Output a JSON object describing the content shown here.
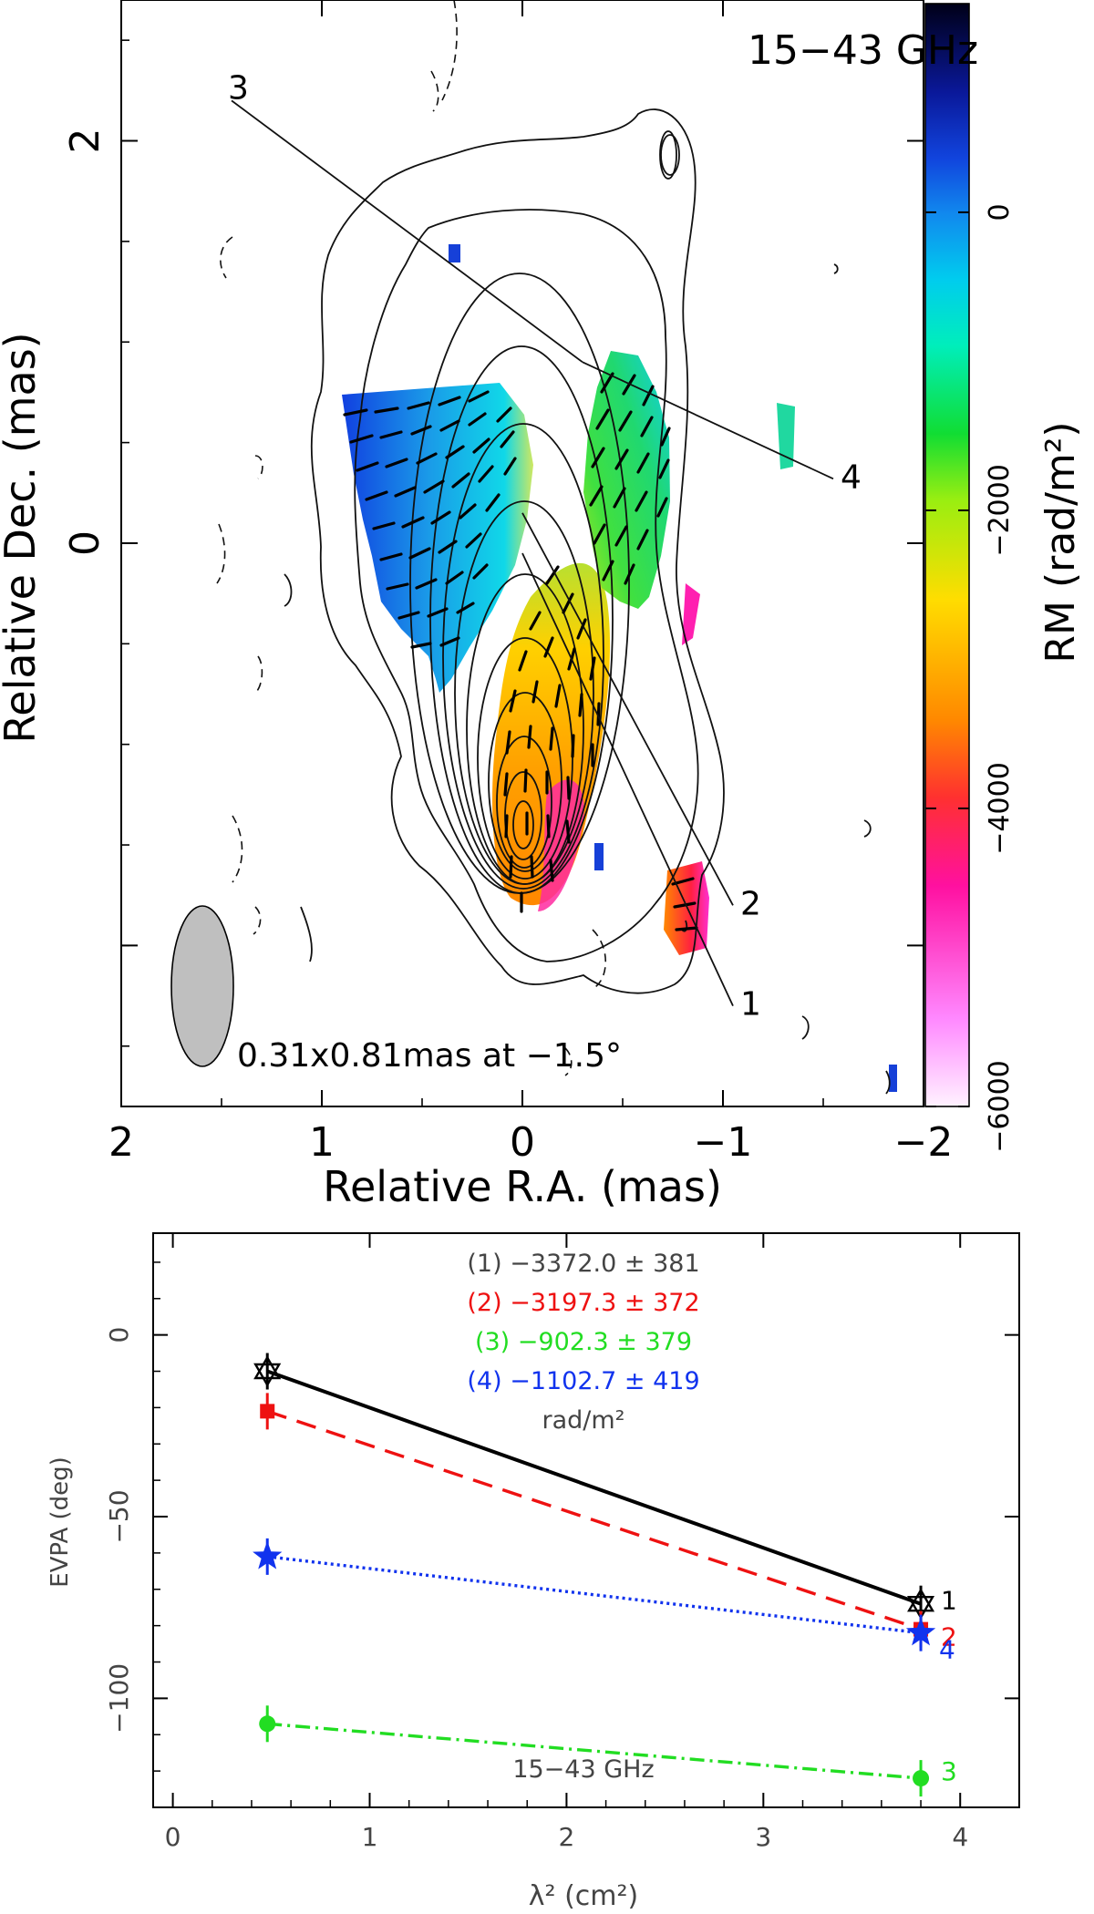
{
  "figure": {
    "colors": {
      "axis": "#000000",
      "gray_text": "#444444"
    }
  },
  "chart_data": [
    {
      "type": "heatmap",
      "title": "15−43 GHz",
      "xlabel": "Relative R.A. (mas)",
      "ylabel": "Relative Dec. (mas)",
      "xlim": [
        2,
        -2
      ],
      "ylim": [
        -2.8,
        2.7
      ],
      "x_ticks": [
        "2",
        "1",
        "0",
        "−1",
        "−2"
      ],
      "y_ticks": [
        "2",
        "0"
      ],
      "beam_label": "0.31x0.81mas at −1.5°",
      "colorbar": {
        "label": "RM (rad/m²)",
        "range": [
          -6000,
          1400
        ],
        "ticks": [
          "0",
          "−2000",
          "−4000",
          "−6000"
        ]
      },
      "slices": [
        {
          "label": "1",
          "from": [
            0.0,
            -0.05
          ],
          "to": [
            -1.05,
            -2.3
          ]
        },
        {
          "label": "2",
          "from": [
            0.0,
            0.15
          ],
          "to": [
            -1.05,
            -1.8
          ]
        },
        {
          "label": "3",
          "from": [
            1.45,
            2.2
          ],
          "to": [
            -0.3,
            0.9
          ]
        },
        {
          "label": "4",
          "from": [
            -0.3,
            0.9
          ],
          "to": [
            -1.55,
            0.32
          ]
        }
      ]
    },
    {
      "type": "line",
      "xlabel": "λ² (cm²)",
      "ylabel": "EVPA (deg)",
      "xlim": [
        -0.1,
        4.3
      ],
      "ylim": [
        -130,
        28
      ],
      "x_ticks": [
        "0",
        "1",
        "2",
        "3",
        "4"
      ],
      "y_ticks": [
        "0",
        "−50",
        "−100"
      ],
      "annotation": "15−43 GHz",
      "unit_label": "rad/m²",
      "series": [
        {
          "name": "1",
          "legend": "(1) −3372.0 ± 381",
          "color": "#000000",
          "marker": "star-outline",
          "dash": "",
          "x": [
            0.48,
            3.8
          ],
          "y": [
            -10,
            -74
          ]
        },
        {
          "name": "2",
          "legend": "(2) −3197.3 ± 372",
          "color": "#ee1111",
          "marker": "square",
          "dash": "22,12",
          "x": [
            0.48,
            3.8
          ],
          "y": [
            -21,
            -81
          ]
        },
        {
          "name": "3",
          "legend": "(3) −902.3 ± 379",
          "color": "#22dd22",
          "marker": "circle",
          "dash": "16,6,3,6",
          "x": [
            0.48,
            3.8
          ],
          "y": [
            -107,
            -122
          ]
        },
        {
          "name": "4",
          "legend": "(4) −1102.7 ± 419",
          "color": "#1133ee",
          "marker": "star",
          "dash": "3,4",
          "x": [
            0.48,
            3.8
          ],
          "y": [
            -61,
            -82
          ]
        }
      ]
    }
  ]
}
